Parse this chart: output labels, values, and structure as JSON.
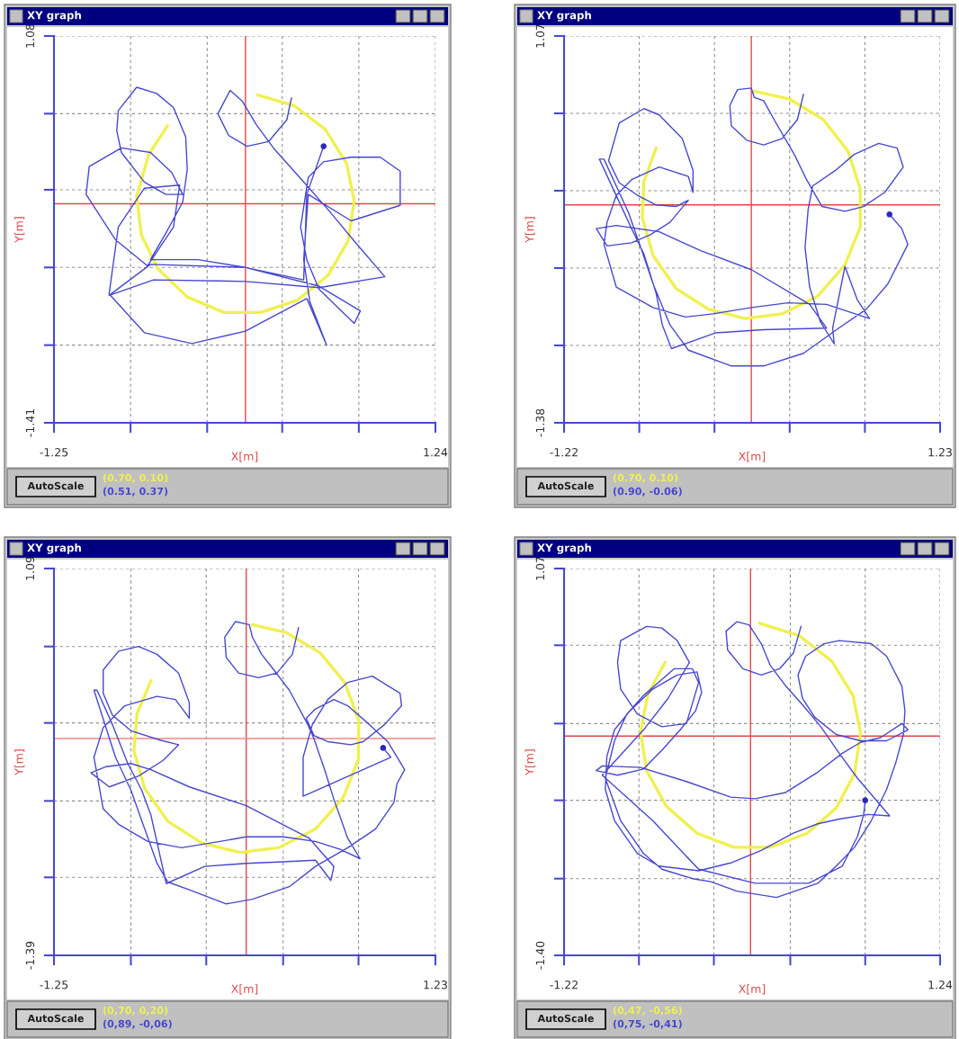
{
  "chart_data": [
    {
      "type": "line",
      "title": "XY graph",
      "xlabel": "X[m]",
      "ylabel": "Y[m]",
      "annotations": [
        "AutoScale",
        "(0.70, 0.10)",
        "(0.51, 0.37)"
      ],
      "xlim": [
        -1.25,
        1.24
      ],
      "ylim": [
        -1.41,
        1.08
      ],
      "xticks": [
        -1.25,
        {
          "value": -0.75,
          "label": null
        },
        {
          "value": -0.25,
          "label": null
        },
        {
          "value": 0.24,
          "label": null
        },
        {
          "value": 0.74,
          "label": null
        },
        1.24
      ],
      "yticks": [
        -1.41,
        {
          "value": -0.91,
          "label": null
        },
        {
          "value": -0.41,
          "label": null
        },
        {
          "value": 0.09,
          "label": null
        },
        {
          "value": 0.58,
          "label": null
        },
        1.08
      ],
      "grid": true,
      "ref_lines": [
        {
          "axis": "x",
          "value": 0,
          "color": "#e04848"
        },
        {
          "axis": "y",
          "value": 0,
          "color": "#e04848"
        }
      ],
      "series": [
        {
          "type": "line",
          "color": "#f0f050",
          "x": [
            -0.51,
            -0.63,
            -0.71,
            -0.68,
            -0.57,
            -0.38,
            -0.14,
            0.1,
            0.34,
            0.54,
            0.67,
            0.71,
            0.66,
            0.52,
            0.32,
            0.08
          ],
          "values": [
            0.5,
            0.32,
            0.05,
            -0.2,
            -0.42,
            -0.6,
            -0.7,
            -0.7,
            -0.62,
            -0.46,
            -0.24,
            0.02,
            0.26,
            0.48,
            0.63,
            0.7
          ]
        },
        {
          "type": "line",
          "color": "#4848d0",
          "x": [
            0.3,
            0.27,
            0.15,
            0.01,
            -0.11,
            -0.18,
            -0.1,
            -0.02,
            0.07,
            0.19,
            0.38,
            0.55,
            0.71,
            0.91,
            0.48,
            0.0,
            -0.6,
            -0.89,
            -0.62,
            0.0,
            0.48,
            0.75,
            0.71,
            0.48,
            0.4,
            0.36,
            0.41,
            0.51,
            0.69,
            0.88,
            1.01,
            1.01,
            0.69,
            0.41,
            0.38,
            0.42,
            0.53,
            0.4,
            0.0,
            -0.35,
            -0.66,
            -0.89,
            -0.83,
            -0.66,
            -0.43,
            -0.47,
            -0.64,
            -0.85,
            -1.04,
            -1.02,
            -0.81,
            -0.62,
            -0.48,
            -0.41,
            -0.52,
            -0.66,
            -0.81,
            -0.84,
            -0.83,
            -0.71,
            -0.58,
            -0.47,
            -0.39,
            -0.38,
            -0.41,
            -0.52,
            -0.62,
            -0.31,
            0.0,
            0.38,
            0.4,
            0.51
          ],
          "values": [
            0.68,
            0.54,
            0.4,
            0.37,
            0.44,
            0.58,
            0.73,
            0.66,
            0.51,
            0.35,
            0.14,
            -0.05,
            -0.24,
            -0.47,
            -0.54,
            -0.5,
            -0.49,
            -0.59,
            -0.39,
            -0.41,
            -0.53,
            -0.69,
            -0.77,
            -0.55,
            -0.36,
            -0.15,
            0.17,
            0.27,
            0.3,
            0.3,
            0.21,
            -0.01,
            -0.11,
            0.06,
            -0.36,
            -0.63,
            -0.91,
            -0.61,
            -0.82,
            -0.9,
            -0.83,
            -0.58,
            -0.15,
            0.1,
            0.12,
            -0.15,
            -0.4,
            -0.23,
            0.06,
            0.24,
            0.36,
            0.33,
            0.2,
            0.06,
            0.06,
            0.14,
            0.33,
            0.47,
            0.6,
            0.75,
            0.71,
            0.62,
            0.43,
            0.22,
            0.01,
            -0.19,
            -0.36,
            -0.36,
            -0.41,
            -0.49,
            0.06,
            0.37
          ]
        },
        {
          "type": "scatter",
          "marker": "circle",
          "color": "#2828c0",
          "x": [
            0.51
          ],
          "values": [
            0.37
          ]
        }
      ]
    },
    {
      "type": "line",
      "title": "XY graph",
      "xlabel": "X[m]",
      "ylabel": "Y[m]",
      "annotations": [
        "AutoScale",
        "(0.70, 0.10)",
        "(0.90, -0.06)"
      ],
      "xlim": [
        -1.22,
        1.23
      ],
      "ylim": [
        -1.38,
        1.07
      ],
      "xticks": [
        -1.22,
        {
          "value": -0.73,
          "label": null
        },
        {
          "value": -0.24,
          "label": null
        },
        {
          "value": 0.25,
          "label": null
        },
        {
          "value": 0.74,
          "label": null
        },
        1.23
      ],
      "yticks": [
        -1.38,
        {
          "value": -0.89,
          "label": null
        },
        {
          "value": -0.4,
          "label": null
        },
        {
          "value": 0.09,
          "label": null
        },
        {
          "value": 0.58,
          "label": null
        },
        1.07
      ],
      "grid": true,
      "ref_lines": [
        {
          "axis": "x",
          "value": 0,
          "color": "#e04848"
        },
        {
          "axis": "y",
          "value": 0,
          "color": "#e04848"
        }
      ],
      "series": [
        {
          "type": "line",
          "color": "#f0f050",
          "x": [
            -0.62,
            -0.7,
            -0.71,
            -0.64,
            -0.49,
            -0.28,
            -0.04,
            0.2,
            0.43,
            0.61,
            0.71,
            0.71,
            0.63,
            0.47,
            0.25,
            0.02
          ],
          "values": [
            0.36,
            0.15,
            -0.08,
            -0.32,
            -0.53,
            -0.66,
            -0.72,
            -0.69,
            -0.58,
            -0.38,
            -0.14,
            0.1,
            0.34,
            0.54,
            0.67,
            0.72
          ]
        },
        {
          "type": "line",
          "color": "#4848d0",
          "x": [
            0.34,
            0.3,
            0.2,
            0.08,
            -0.03,
            -0.13,
            -0.14,
            -0.09,
            0.0,
            0.02,
            0.08,
            0.16,
            0.28,
            0.36,
            0.46,
            0.61,
            0.73,
            0.87,
            0.99,
            0.95,
            0.83,
            0.67,
            0.55,
            0.4,
            0.37,
            0.35,
            0.38,
            0.45,
            0.54,
            0.53,
            0.61,
            0.69,
            0.77,
            0.49,
            0.24,
            0.0,
            -0.25,
            -0.43,
            -0.64,
            -0.88,
            -0.96,
            -0.94,
            -0.88,
            -0.78,
            -0.6,
            -0.41,
            -0.38,
            -0.38,
            -0.45,
            -0.6,
            -0.7,
            -0.86,
            -0.93,
            -0.86,
            -0.74,
            -0.62,
            -0.49,
            -0.41,
            -0.53,
            -0.66,
            -0.78,
            -0.94,
            -1.01,
            -0.88,
            -0.6,
            -0.33,
            0.0,
            0.38,
            0.49,
            0.08,
            -0.23,
            -0.52,
            -0.58,
            -0.62,
            -0.7,
            -0.78,
            -0.99,
            -0.96,
            -0.8,
            -0.72,
            -0.64,
            -0.53,
            -0.41,
            -0.13,
            0.08,
            0.34,
            0.57,
            0.75,
            0.89,
            1.02,
            0.98,
            0.9
          ],
          "values": [
            0.7,
            0.54,
            0.42,
            0.38,
            0.41,
            0.5,
            0.63,
            0.73,
            0.74,
            0.68,
            0.66,
            0.52,
            0.32,
            0.16,
            -0.01,
            -0.04,
            -0.01,
            0.08,
            0.24,
            0.36,
            0.39,
            0.32,
            0.22,
            0.12,
            -0.03,
            -0.27,
            -0.52,
            -0.74,
            -0.88,
            -0.78,
            -0.39,
            -0.6,
            -0.72,
            -0.63,
            -0.62,
            -0.65,
            -0.69,
            -0.71,
            -0.65,
            -0.52,
            -0.25,
            -0.11,
            0.06,
            0.16,
            0.24,
            0.18,
            0.08,
            0.22,
            0.42,
            0.57,
            0.61,
            0.52,
            0.28,
            0.14,
            0.06,
            0.0,
            -0.01,
            0.03,
            -0.11,
            -0.19,
            -0.24,
            -0.26,
            -0.15,
            -0.13,
            -0.17,
            -0.29,
            -0.41,
            -0.63,
            -0.78,
            -0.79,
            -0.81,
            -0.91,
            -0.76,
            -0.56,
            -0.31,
            -0.15,
            0.29,
            0.29,
            -0.05,
            -0.27,
            -0.5,
            -0.76,
            -0.92,
            -1.02,
            -1.02,
            -0.94,
            -0.78,
            -0.66,
            -0.5,
            -0.25,
            -0.15,
            -0.06
          ]
        },
        {
          "type": "scatter",
          "marker": "circle",
          "color": "#2828c0",
          "x": [
            0.9
          ],
          "values": [
            -0.06
          ]
        }
      ]
    },
    {
      "type": "line",
      "title": "XY graph",
      "xlabel": "X[m]",
      "ylabel": "Y[m]",
      "annotations": [
        "AutoScale",
        "(0,70, 0,20)",
        "(0,89, -0,06)"
      ],
      "xlim": [
        -1.25,
        1.23
      ],
      "ylim": [
        -1.39,
        1.09
      ],
      "xticks": [
        -1.25,
        {
          "value": -0.75,
          "label": null
        },
        {
          "value": -0.26,
          "label": null
        },
        {
          "value": 0.24,
          "label": null
        },
        {
          "value": 0.73,
          "label": null
        },
        1.23
      ],
      "yticks": [
        -1.39,
        {
          "value": -0.89,
          "label": null
        },
        {
          "value": -0.4,
          "label": null
        },
        {
          "value": 0.1,
          "label": null
        },
        {
          "value": 0.59,
          "label": null
        },
        1.09
      ],
      "grid": true,
      "ref_lines": [
        {
          "axis": "x",
          "value": 0,
          "color": "#e04848"
        },
        {
          "axis": "y",
          "value": 0,
          "color": "#f08888"
        }
      ],
      "series": [
        {
          "type": "line",
          "color": "#f0f050",
          "x": [
            -0.62,
            -0.71,
            -0.73,
            -0.66,
            -0.51,
            -0.29,
            -0.04,
            0.21,
            0.45,
            0.63,
            0.73,
            0.73,
            0.64,
            0.48,
            0.26,
            0.04
          ],
          "values": [
            0.37,
            0.16,
            -0.08,
            -0.32,
            -0.53,
            -0.67,
            -0.73,
            -0.7,
            -0.58,
            -0.38,
            -0.13,
            0.12,
            0.36,
            0.55,
            0.68,
            0.73
          ]
        },
        {
          "type": "line",
          "color": "#4848d0",
          "x": [
            0.34,
            0.3,
            0.2,
            0.08,
            -0.05,
            -0.13,
            -0.14,
            -0.07,
            0.02,
            0.04,
            0.1,
            0.18,
            0.28,
            0.4,
            0.44,
            0.51,
            0.57,
            0.66,
            0.74,
            0.61,
            0.45,
            0.24,
            0.0,
            -0.17,
            -0.42,
            -0.64,
            -0.83,
            -0.93,
            -0.99,
            -0.93,
            -0.79,
            -0.58,
            -0.46,
            -0.37,
            -0.37,
            -0.44,
            -0.58,
            -0.7,
            -0.83,
            -0.93,
            -0.93,
            -0.87,
            -0.75,
            -0.56,
            -0.44,
            -0.54,
            -0.7,
            -0.89,
            -1.01,
            -0.91,
            -0.75,
            -0.62,
            -0.37,
            0.0,
            0.41,
            0.57,
            0.55,
            0.45,
            0.24,
            0.0,
            -0.27,
            -0.52,
            -0.62,
            -0.68,
            -0.77,
            -0.87,
            -0.97,
            -0.99,
            -0.85,
            -0.75,
            -0.66,
            -0.58,
            -0.51,
            -0.37,
            -0.13,
            0.04,
            0.28,
            0.45,
            0.66,
            0.84,
            0.96,
            0.98,
            1.03,
            0.92,
            0.8,
            0.66,
            0.57,
            0.45,
            0.39,
            0.44,
            0.53,
            0.68,
            0.76,
            0.9,
            1.01,
            1.0,
            0.82,
            0.66,
            0.53,
            0.43,
            0.37,
            0.37,
            0.94,
            0.89
          ],
          "values": [
            0.71,
            0.54,
            0.42,
            0.39,
            0.42,
            0.52,
            0.65,
            0.75,
            0.73,
            0.65,
            0.54,
            0.44,
            0.31,
            0.09,
            0.0,
            -0.2,
            -0.39,
            -0.64,
            -0.77,
            -0.71,
            -0.66,
            -0.63,
            -0.63,
            -0.66,
            -0.7,
            -0.66,
            -0.55,
            -0.45,
            -0.12,
            0.07,
            0.21,
            0.27,
            0.25,
            0.13,
            0.23,
            0.42,
            0.54,
            0.59,
            0.56,
            0.44,
            0.29,
            0.15,
            0.05,
            -0.01,
            -0.04,
            -0.14,
            -0.24,
            -0.31,
            -0.22,
            -0.18,
            -0.16,
            -0.2,
            -0.31,
            -0.43,
            -0.64,
            -0.82,
            -0.91,
            -0.78,
            -0.79,
            -0.8,
            -0.82,
            -0.93,
            -0.49,
            -0.33,
            -0.16,
            0.09,
            0.31,
            0.31,
            -0.12,
            -0.33,
            -0.58,
            -0.8,
            -0.92,
            -0.97,
            -1.06,
            -1.03,
            -0.95,
            -0.82,
            -0.7,
            -0.58,
            -0.41,
            -0.29,
            -0.2,
            -0.02,
            0.09,
            0.21,
            0.25,
            0.19,
            0.13,
            0.02,
            -0.02,
            -0.04,
            -0.02,
            0.09,
            0.21,
            0.29,
            0.4,
            0.36,
            0.25,
            0.09,
            -0.12,
            -0.37,
            -0.12,
            -0.06
          ]
        },
        {
          "type": "scatter",
          "marker": "circle",
          "color": "#2828c0",
          "x": [
            0.89
          ],
          "values": [
            -0.06
          ]
        }
      ]
    },
    {
      "type": "line",
      "title": "XY graph",
      "xlabel": "X[m]",
      "ylabel": "Y[m]",
      "annotations": [
        "AutoScale",
        "(0,47, -0,56)",
        "(0,75, -0,41)"
      ],
      "xlim": [
        -1.22,
        1.24
      ],
      "ylim": [
        -1.4,
        1.07
      ],
      "xticks": [
        -1.22,
        {
          "value": -0.73,
          "label": null
        },
        {
          "value": -0.24,
          "label": null
        },
        {
          "value": 0.26,
          "label": null
        },
        {
          "value": 0.75,
          "label": null
        },
        1.24
      ],
      "yticks": [
        {
          "value": -1.4,
          "label": "-1.40"
        },
        {
          "value": -0.91,
          "label": null
        },
        {
          "value": -0.41,
          "label": null
        },
        {
          "value": 0.08,
          "label": null
        },
        {
          "value": 0.58,
          "label": null
        },
        1.07
      ],
      "grid": true,
      "ref_lines": [
        {
          "axis": "x",
          "value": 0,
          "color": "#e04848"
        },
        {
          "axis": "y",
          "value": 0,
          "color": "#e04848"
        }
      ],
      "series": [
        {
          "type": "line",
          "color": "#f0f050",
          "x": [
            -0.56,
            -0.67,
            -0.72,
            -0.68,
            -0.55,
            -0.35,
            -0.11,
            0.13,
            0.37,
            0.56,
            0.68,
            0.72,
            0.67,
            0.53,
            0.32,
            0.06
          ],
          "values": [
            0.47,
            0.27,
            0.03,
            -0.22,
            -0.45,
            -0.62,
            -0.71,
            -0.71,
            -0.62,
            -0.46,
            -0.24,
            0.02,
            0.26,
            0.48,
            0.64,
            0.72
          ]
        },
        {
          "type": "line",
          "color": "#4848d0",
          "x": [
            0.33,
            0.28,
            0.19,
            0.07,
            -0.05,
            -0.15,
            -0.16,
            -0.09,
            -0.01,
            0.07,
            0.13,
            0.23,
            0.34,
            0.46,
            0.58,
            0.7,
            0.91,
            0.77,
            0.58,
            0.44,
            0.28,
            0.07,
            -0.13,
            -0.34,
            -0.6,
            -0.74,
            -0.89,
            -0.95,
            -0.94,
            -0.89,
            -0.79,
            -0.64,
            -0.48,
            -0.35,
            -0.32,
            -0.36,
            -0.46,
            -0.58,
            -0.7,
            -0.87,
            -1.01,
            -0.97,
            -0.72,
            -0.42,
            -0.13,
            0.03,
            0.23,
            0.44,
            0.6,
            0.72,
            0.85,
            0.99,
            1.03,
            0.89,
            0.72,
            0.56,
            0.42,
            0.34,
            0.31,
            0.36,
            0.48,
            0.58,
            0.79,
            0.89,
            0.99,
            1.01,
            1.0,
            0.95,
            0.89,
            0.79,
            0.68,
            0.56,
            0.44,
            0.17,
            -0.09,
            -0.26,
            -0.38,
            -0.58,
            -0.7,
            -0.85,
            -0.95,
            -0.89,
            -0.81,
            -0.7,
            -0.5,
            -0.38,
            -0.34,
            -0.42,
            -0.58,
            -0.74,
            -0.85,
            -0.87,
            -0.85,
            -0.68,
            -0.58,
            -0.48,
            -0.4,
            -0.54,
            -0.7,
            -0.97,
            -0.64,
            -0.34,
            0.03,
            0.38,
            0.6,
            0.7,
            0.74,
            0.75
          ],
          "values": [
            0.7,
            0.53,
            0.43,
            0.39,
            0.43,
            0.55,
            0.67,
            0.73,
            0.71,
            0.59,
            0.45,
            0.32,
            0.2,
            0.06,
            -0.11,
            -0.27,
            -0.51,
            -0.5,
            -0.53,
            -0.56,
            -0.62,
            -0.73,
            -0.81,
            -0.86,
            -0.83,
            -0.75,
            -0.54,
            -0.34,
            -0.13,
            0.04,
            0.16,
            0.3,
            0.39,
            0.41,
            0.28,
            0.16,
            0.04,
            -0.09,
            -0.21,
            -0.25,
            -0.22,
            -0.19,
            -0.2,
            -0.29,
            -0.39,
            -0.4,
            -0.36,
            -0.23,
            -0.11,
            -0.04,
            -0.01,
            0.08,
            0.04,
            -0.03,
            -0.03,
            0.01,
            0.12,
            0.24,
            0.39,
            0.51,
            0.59,
            0.61,
            0.59,
            0.51,
            0.32,
            0.16,
            0.01,
            -0.17,
            -0.34,
            -0.54,
            -0.71,
            -0.83,
            -0.94,
            -1.03,
            -0.99,
            -0.93,
            -0.91,
            -0.85,
            -0.75,
            -0.54,
            -0.27,
            -0.03,
            0.14,
            0.26,
            0.43,
            0.43,
            0.34,
            0.08,
            0.06,
            0.14,
            0.3,
            0.47,
            0.61,
            0.7,
            0.69,
            0.61,
            0.47,
            0.24,
            0.04,
            -0.25,
            -0.54,
            -0.85,
            -0.94,
            -0.94,
            -0.83,
            -0.64,
            -0.5,
            -0.41
          ]
        },
        {
          "type": "scatter",
          "marker": "circle",
          "color": "#2828c0",
          "x": [
            0.75
          ],
          "values": [
            -0.41
          ]
        }
      ]
    }
  ]
}
